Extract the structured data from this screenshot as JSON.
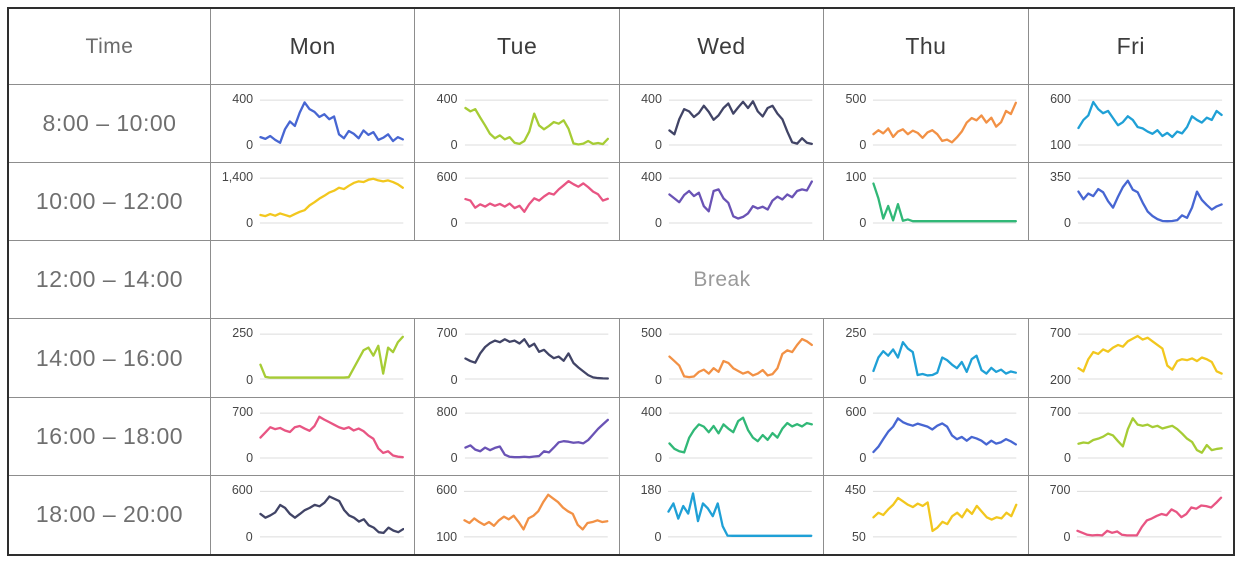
{
  "table": {
    "corner_label": "Time",
    "day_headers": [
      "Mon",
      "Tue",
      "Wed",
      "Thu",
      "Fri"
    ],
    "break_label": "Break",
    "rows": [
      {
        "time": "8:00 – 10:00"
      },
      {
        "time": "10:00 – 12:00"
      },
      {
        "time": "12:00 – 14:00",
        "break": true
      },
      {
        "time": "14:00 – 16:00"
      },
      {
        "time": "16:00 – 18:00"
      },
      {
        "time": "18:00 – 20:00"
      }
    ]
  },
  "chart_data": {
    "type": "line",
    "title": "Weekly schedule activity sparklines",
    "grid": true,
    "legend_position": "none",
    "cells": [
      {
        "day": "Mon",
        "time": "8:00 – 10:00",
        "color": "#4766d2",
        "ylim": [
          0,
          400
        ],
        "ymax_label": "400",
        "ymin_label": "0",
        "values": [
          70,
          55,
          80,
          45,
          20,
          140,
          210,
          170,
          290,
          380,
          320,
          295,
          250,
          275,
          230,
          255,
          95,
          60,
          125,
          100,
          60,
          130,
          90,
          115,
          45,
          65,
          95,
          35,
          70,
          50
        ]
      },
      {
        "day": "Tue",
        "time": "8:00 – 10:00",
        "color": "#a6cc35",
        "ylim": [
          0,
          400
        ],
        "ymax_label": "400",
        "ymin_label": "0",
        "values": [
          330,
          300,
          320,
          245,
          175,
          100,
          60,
          85,
          50,
          70,
          20,
          10,
          35,
          120,
          280,
          175,
          140,
          170,
          205,
          190,
          220,
          145,
          15,
          5,
          12,
          35,
          10,
          18,
          8,
          55
        ]
      },
      {
        "day": "Wed",
        "time": "8:00 – 10:00",
        "color": "#414466",
        "ylim": [
          0,
          400
        ],
        "ymax_label": "400",
        "ymin_label": "0",
        "values": [
          130,
          95,
          230,
          320,
          300,
          250,
          285,
          350,
          295,
          225,
          265,
          330,
          370,
          280,
          335,
          385,
          330,
          390,
          300,
          255,
          330,
          350,
          280,
          230,
          120,
          25,
          12,
          60,
          20,
          10
        ]
      },
      {
        "day": "Thu",
        "time": "8:00 – 10:00",
        "color": "#f29145",
        "ylim": [
          0,
          500
        ],
        "ymax_label": "500",
        "ymin_label": "0",
        "values": [
          120,
          165,
          130,
          185,
          90,
          150,
          175,
          120,
          160,
          135,
          80,
          140,
          165,
          120,
          45,
          60,
          30,
          85,
          150,
          250,
          300,
          275,
          330,
          250,
          305,
          205,
          255,
          380,
          345,
          470
        ]
      },
      {
        "day": "Fri",
        "time": "8:00 – 10:00",
        "color": "#1fa0d6",
        "ylim": [
          100,
          600
        ],
        "ymax_label": "600",
        "ymin_label": "100",
        "values": [
          290,
          380,
          430,
          580,
          500,
          455,
          480,
          400,
          320,
          355,
          420,
          380,
          300,
          285,
          250,
          225,
          265,
          200,
          235,
          190,
          250,
          230,
          300,
          420,
          380,
          350,
          405,
          380,
          480,
          435
        ]
      },
      {
        "day": "Mon",
        "time": "10:00 – 12:00",
        "color": "#f2c71e",
        "ylim": [
          0,
          1400
        ],
        "ymax_label": "1,400",
        "ymin_label": "0",
        "values": [
          250,
          215,
          280,
          230,
          300,
          250,
          205,
          280,
          350,
          400,
          550,
          650,
          760,
          850,
          950,
          1010,
          1100,
          1060,
          1160,
          1250,
          1300,
          1280,
          1350,
          1380,
          1330,
          1300,
          1330,
          1280,
          1210,
          1100
        ]
      },
      {
        "day": "Tue",
        "time": "10:00 – 12:00",
        "color": "#e85583",
        "ylim": [
          0,
          600
        ],
        "ymax_label": "600",
        "ymin_label": "0",
        "values": [
          320,
          300,
          205,
          250,
          220,
          260,
          230,
          255,
          220,
          260,
          200,
          230,
          150,
          255,
          330,
          300,
          355,
          400,
          380,
          450,
          505,
          560,
          520,
          485,
          530,
          480,
          420,
          385,
          300,
          325
        ]
      },
      {
        "day": "Wed",
        "time": "10:00 – 12:00",
        "color": "#6a53b5",
        "ylim": [
          0,
          400
        ],
        "ymax_label": "400",
        "ymin_label": "0",
        "values": [
          255,
          220,
          185,
          250,
          285,
          240,
          270,
          150,
          105,
          285,
          300,
          220,
          180,
          60,
          40,
          55,
          85,
          150,
          130,
          145,
          120,
          200,
          235,
          210,
          255,
          230,
          285,
          300,
          290,
          370
        ]
      },
      {
        "day": "Thu",
        "time": "10:00 – 12:00",
        "color": "#31b877",
        "ylim": [
          0,
          100
        ],
        "ymax_label": "100",
        "ymin_label": "0",
        "values": [
          88,
          55,
          10,
          38,
          6,
          42,
          5,
          8,
          4,
          4,
          4,
          4,
          4,
          4,
          4,
          4,
          4,
          4,
          4,
          4,
          4,
          4,
          4,
          4,
          4,
          4,
          4,
          4,
          4,
          4
        ]
      },
      {
        "day": "Fri",
        "time": "10:00 – 12:00",
        "color": "#4766d2",
        "ylim": [
          0,
          350
        ],
        "ymax_label": "350",
        "ymin_label": "0",
        "values": [
          245,
          185,
          230,
          210,
          265,
          240,
          170,
          120,
          205,
          280,
          330,
          260,
          240,
          160,
          90,
          55,
          30,
          16,
          14,
          16,
          22,
          60,
          40,
          120,
          245,
          180,
          140,
          105,
          130,
          145
        ]
      },
      {
        "day": "Mon",
        "time": "14:00 – 16:00",
        "color": "#a6cc35",
        "ylim": [
          0,
          250
        ],
        "ymax_label": "250",
        "ymin_label": "0",
        "values": [
          80,
          12,
          8,
          8,
          8,
          8,
          8,
          8,
          8,
          8,
          8,
          8,
          8,
          8,
          8,
          8,
          8,
          8,
          10,
          60,
          110,
          160,
          175,
          130,
          185,
          30,
          175,
          150,
          205,
          235
        ]
      },
      {
        "day": "Tue",
        "time": "14:00 – 16:00",
        "color": "#414466",
        "ylim": [
          0,
          700
        ],
        "ymax_label": "700",
        "ymin_label": "0",
        "values": [
          320,
          280,
          255,
          400,
          500,
          560,
          600,
          575,
          620,
          580,
          600,
          555,
          620,
          505,
          550,
          425,
          455,
          380,
          325,
          350,
          285,
          400,
          250,
          180,
          120,
          60,
          25,
          15,
          10,
          8
        ]
      },
      {
        "day": "Wed",
        "time": "14:00 – 16:00",
        "color": "#f29145",
        "ylim": [
          0,
          500
        ],
        "ymax_label": "500",
        "ymin_label": "0",
        "values": [
          250,
          200,
          150,
          30,
          20,
          28,
          80,
          105,
          60,
          120,
          80,
          200,
          180,
          120,
          90,
          60,
          80,
          40,
          60,
          100,
          40,
          55,
          120,
          280,
          320,
          300,
          380,
          445,
          420,
          380
        ]
      },
      {
        "day": "Thu",
        "time": "14:00 – 16:00",
        "color": "#1fa0d6",
        "ylim": [
          0,
          250
        ],
        "ymax_label": "250",
        "ymin_label": "0",
        "values": [
          45,
          120,
          155,
          130,
          165,
          120,
          205,
          170,
          150,
          22,
          28,
          20,
          22,
          35,
          120,
          105,
          80,
          60,
          95,
          40,
          110,
          130,
          50,
          30,
          62,
          40,
          52,
          30,
          42,
          35
        ]
      },
      {
        "day": "Fri",
        "time": "14:00 – 16:00",
        "color": "#f2c71e",
        "ylim": [
          200,
          700
        ],
        "ymax_label": "700",
        "ymin_label": "200",
        "values": [
          320,
          285,
          420,
          500,
          480,
          530,
          505,
          550,
          580,
          560,
          620,
          650,
          680,
          640,
          660,
          620,
          580,
          540,
          350,
          305,
          400,
          420,
          410,
          430,
          400,
          440,
          420,
          390,
          285,
          260
        ]
      },
      {
        "day": "Mon",
        "time": "16:00 – 18:00",
        "color": "#e85583",
        "ylim": [
          0,
          700
        ],
        "ymax_label": "700",
        "ymin_label": "0",
        "values": [
          320,
          400,
          480,
          450,
          470,
          430,
          405,
          480,
          500,
          460,
          425,
          500,
          645,
          600,
          560,
          520,
          480,
          455,
          480,
          430,
          460,
          420,
          350,
          300,
          150,
          80,
          105,
          40,
          20,
          12
        ]
      },
      {
        "day": "Tue",
        "time": "16:00 – 18:00",
        "color": "#6a53b5",
        "ylim": [
          0,
          800
        ],
        "ymax_label": "800",
        "ymin_label": "0",
        "values": [
          185,
          225,
          150,
          120,
          185,
          140,
          180,
          205,
          60,
          22,
          15,
          15,
          22,
          15,
          28,
          35,
          120,
          100,
          185,
          280,
          300,
          290,
          272,
          282,
          262,
          320,
          420,
          520,
          600,
          680
        ]
      },
      {
        "day": "Wed",
        "time": "16:00 – 18:00",
        "color": "#31b877",
        "ylim": [
          0,
          400
        ],
        "ymax_label": "400",
        "ymin_label": "0",
        "values": [
          130,
          82,
          60,
          50,
          180,
          250,
          300,
          280,
          230,
          285,
          220,
          300,
          262,
          230,
          330,
          360,
          250,
          182,
          150,
          205,
          162,
          222,
          182,
          262,
          312,
          282,
          302,
          282,
          312,
          300
        ]
      },
      {
        "day": "Thu",
        "time": "16:00 – 18:00",
        "color": "#4766d2",
        "ylim": [
          0,
          600
        ],
        "ymax_label": "600",
        "ymin_label": "0",
        "values": [
          80,
          152,
          252,
          352,
          420,
          530,
          480,
          452,
          432,
          460,
          440,
          420,
          382,
          432,
          462,
          420,
          302,
          252,
          282,
          232,
          282,
          262,
          232,
          182,
          232,
          192,
          212,
          252,
          222,
          182
        ]
      },
      {
        "day": "Fri",
        "time": "16:00 – 18:00",
        "color": "#a6cc35",
        "ylim": [
          0,
          700
        ],
        "ymax_label": "700",
        "ymin_label": "0",
        "values": [
          222,
          242,
          232,
          282,
          302,
          332,
          382,
          352,
          262,
          182,
          450,
          620,
          520,
          502,
          522,
          482,
          502,
          462,
          482,
          502,
          452,
          382,
          302,
          252,
          122,
          82,
          202,
          122,
          142,
          152
        ]
      },
      {
        "day": "Mon",
        "time": "18:00 – 20:00",
        "color": "#414466",
        "ylim": [
          0,
          600
        ],
        "ymax_label": "600",
        "ymin_label": "0",
        "values": [
          302,
          252,
          282,
          322,
          420,
          382,
          302,
          252,
          302,
          352,
          382,
          422,
          402,
          450,
          532,
          502,
          472,
          352,
          282,
          252,
          202,
          232,
          152,
          122,
          62,
          52,
          122,
          82,
          62,
          102
        ]
      },
      {
        "day": "Tue",
        "time": "18:00 – 20:00",
        "color": "#f29145",
        "ylim": [
          100,
          600
        ],
        "ymax_label": "600",
        "ymin_label": "100",
        "values": [
          282,
          252,
          302,
          262,
          232,
          262,
          222,
          282,
          322,
          292,
          332,
          262,
          182,
          302,
          332,
          382,
          482,
          562,
          522,
          482,
          422,
          382,
          352,
          232,
          182,
          252,
          262,
          282,
          262,
          272
        ]
      },
      {
        "day": "Wed",
        "time": "18:00 – 20:00",
        "color": "#1fa0d6",
        "ylim": [
          0,
          180
        ],
        "ymax_label": "180",
        "ymin_label": "0",
        "values": [
          100,
          132,
          72,
          122,
          92,
          172,
          62,
          132,
          112,
          82,
          132,
          42,
          5,
          4,
          4,
          4,
          4,
          4,
          4,
          4,
          4,
          4,
          4,
          4,
          4,
          4,
          4,
          4,
          4,
          4
        ]
      },
      {
        "day": "Thu",
        "time": "18:00 – 20:00",
        "color": "#f2c71e",
        "ylim": [
          50,
          450
        ],
        "ymax_label": "450",
        "ymin_label": "50",
        "values": [
          222,
          262,
          242,
          292,
          332,
          392,
          362,
          332,
          312,
          342,
          322,
          352,
          102,
          132,
          182,
          162,
          232,
          262,
          222,
          292,
          252,
          322,
          272,
          222,
          202,
          222,
          212,
          262,
          232,
          332
        ]
      },
      {
        "day": "Fri",
        "time": "18:00 – 20:00",
        "color": "#e85583",
        "ylim": [
          0,
          700
        ],
        "ymax_label": "700",
        "ymin_label": "0",
        "values": [
          92,
          62,
          32,
          22,
          28,
          22,
          92,
          62,
          82,
          32,
          22,
          22,
          22,
          152,
          252,
          282,
          322,
          352,
          332,
          422,
          382,
          302,
          352,
          452,
          432,
          482,
          472,
          452,
          522,
          602
        ]
      }
    ]
  }
}
